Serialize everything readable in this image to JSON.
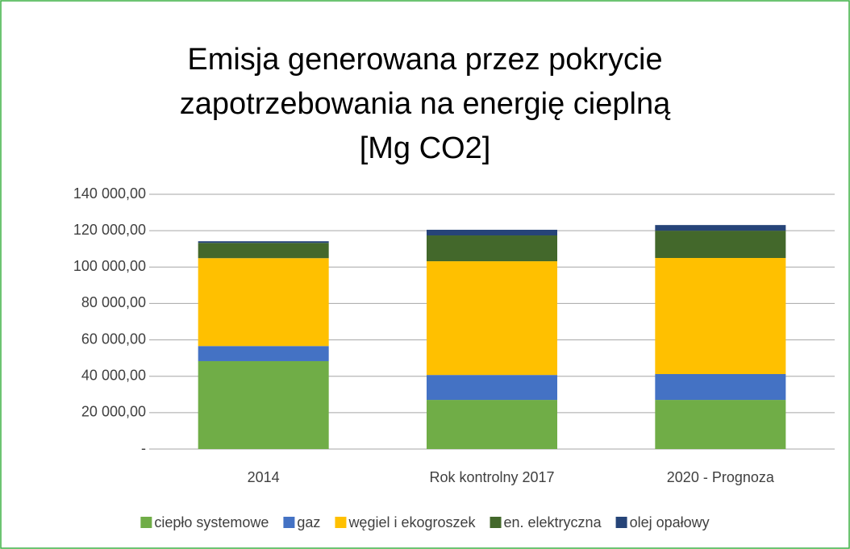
{
  "chart_data": {
    "type": "stacked_bar",
    "title": [
      "Emisja generowana przez pokrycie",
      "zapotrzebowania na energię cieplną",
      "[Mg CO2]"
    ],
    "categories": [
      "2014",
      "Rok kontrolny 2017",
      "2020 - Prognoza"
    ],
    "series": [
      {
        "name": "ciepło systemowe",
        "color": "#70ad47",
        "values": [
          48300,
          27000,
          27000
        ]
      },
      {
        "name": "gaz",
        "color": "#4472c4",
        "values": [
          8300,
          13700,
          14200
        ]
      },
      {
        "name": "węgiel i ekogroszek",
        "color": "#ffc000",
        "values": [
          48300,
          62500,
          63800
        ]
      },
      {
        "name": "en. elektryczna",
        "color": "#43682b",
        "values": [
          8400,
          14200,
          15000
        ]
      },
      {
        "name": "olej opałowy",
        "color": "#264478",
        "values": [
          900,
          3100,
          3100
        ]
      }
    ],
    "ylim": [
      0,
      140000
    ],
    "yticks": [
      {
        "value": 0,
        "label": "-"
      },
      {
        "value": 20000,
        "label": "20 000,00"
      },
      {
        "value": 40000,
        "label": "40 000,00"
      },
      {
        "value": 60000,
        "label": "60 000,00"
      },
      {
        "value": 80000,
        "label": "80 000,00"
      },
      {
        "value": 100000,
        "label": "100 000,00"
      },
      {
        "value": 120000,
        "label": "120 000,00"
      },
      {
        "value": 140000,
        "label": "140 000,00"
      }
    ],
    "grid": true,
    "legend": "bottom"
  }
}
